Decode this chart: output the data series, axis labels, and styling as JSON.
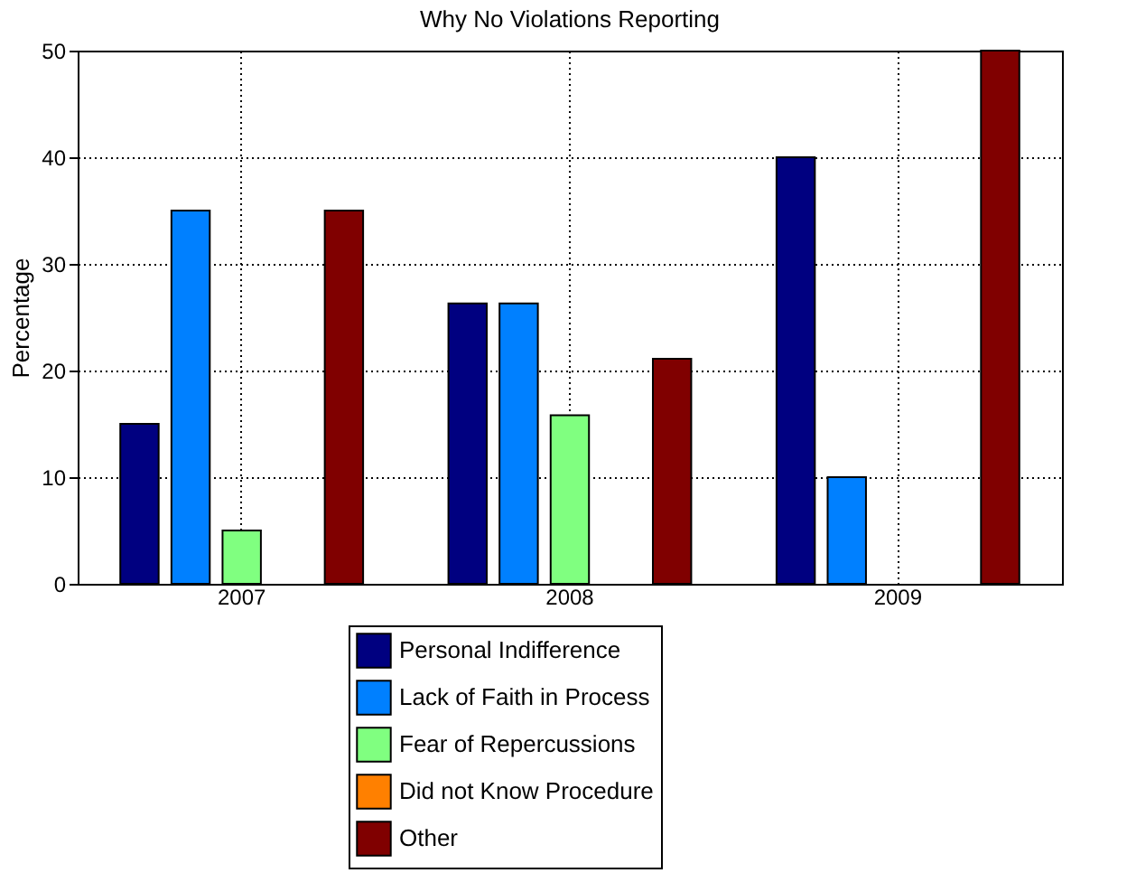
{
  "chart_data": {
    "type": "bar",
    "title": "Why No Violations Reporting",
    "ylabel": "Percentage",
    "categories": [
      "2007",
      "2008",
      "2009"
    ],
    "series": [
      {
        "name": "Personal Indifference",
        "color": "#000080",
        "values": [
          15,
          26.3,
          40
        ]
      },
      {
        "name": "Lack of Faith in Process",
        "color": "#0080ff",
        "values": [
          35,
          26.3,
          10
        ]
      },
      {
        "name": "Fear of Repercussions",
        "color": "#80ff80",
        "values": [
          5,
          15.8,
          0
        ]
      },
      {
        "name": "Did not Know Procedure",
        "color": "#ff8000",
        "values": [
          0,
          0,
          0
        ]
      },
      {
        "name": "Other",
        "color": "#800000",
        "values": [
          35,
          21.1,
          50
        ]
      }
    ],
    "ylim": [
      0,
      50
    ],
    "yticks": [
      0,
      10,
      20,
      30,
      40,
      50
    ],
    "grid": true,
    "legend": "bottom"
  }
}
